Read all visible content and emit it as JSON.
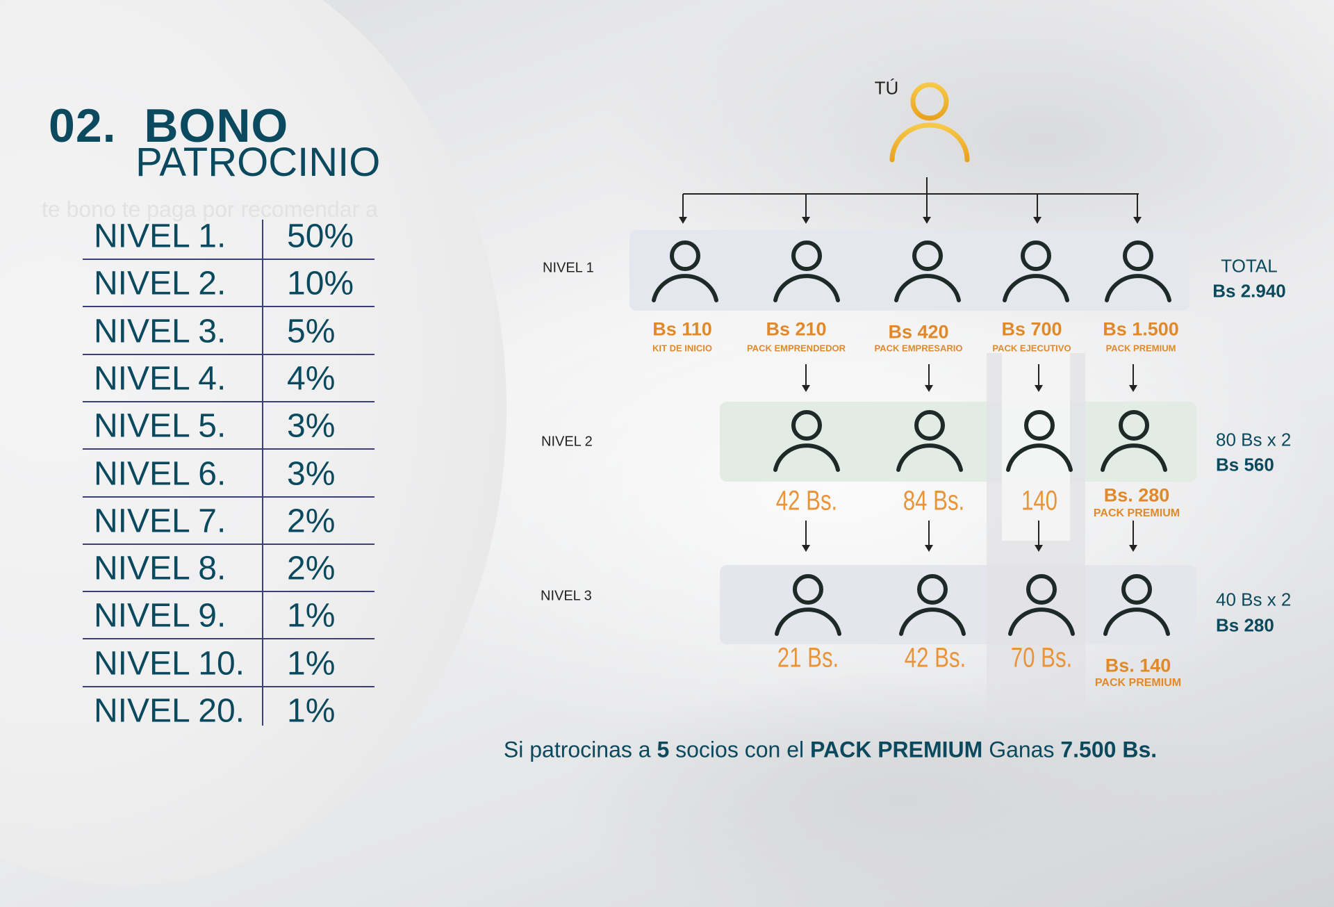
{
  "title": {
    "number": "02.",
    "word1": "BONO",
    "word2": "PATROCINIO"
  },
  "faint_text": "te bono te paga por recomendar a",
  "levels_table": [
    {
      "level": "NIVEL 1.",
      "percent": "50%"
    },
    {
      "level": "NIVEL 2.",
      "percent": "10%"
    },
    {
      "level": "NIVEL 3.",
      "percent": "5%"
    },
    {
      "level": "NIVEL 4.",
      "percent": "4%"
    },
    {
      "level": "NIVEL 5.",
      "percent": "3%"
    },
    {
      "level": "NIVEL 6.",
      "percent": "3%"
    },
    {
      "level": "NIVEL 7.",
      "percent": "2%"
    },
    {
      "level": "NIVEL 8.",
      "percent": "2%"
    },
    {
      "level": "NIVEL 9.",
      "percent": "1%"
    },
    {
      "level": "NIVEL 10.",
      "percent": "1%"
    },
    {
      "level": "NIVEL 20.",
      "percent": "1%"
    }
  ],
  "diagram": {
    "you_label": "TÚ",
    "level_labels": [
      "NIVEL 1",
      "NIVEL 2",
      "NIVEL 3"
    ],
    "level1": [
      {
        "price": "Bs 110",
        "pack": "KIT DE INICIO"
      },
      {
        "price": "Bs 210",
        "pack": "PACK EMPRENDEDOR"
      },
      {
        "price": "Bs 420",
        "pack": "PACK EMPRESARIO"
      },
      {
        "price": "Bs 700",
        "pack": "PACK EJECUTIVO"
      },
      {
        "price": "Bs 1.500",
        "pack": "PACK PREMIUM"
      }
    ],
    "level2": [
      "42 Bs.",
      "84 Bs.",
      "140"
    ],
    "level2_premium": {
      "price": "Bs. 280",
      "pack": "PACK PREMIUM"
    },
    "level3": [
      "21 Bs.",
      "42 Bs.",
      "70 Bs."
    ],
    "level3_premium": {
      "price": "Bs. 140",
      "pack": "PACK PREMIUM"
    },
    "totals": {
      "level1_label": "TOTAL",
      "level1_value": "Bs 2.940",
      "level2_calc": "80 Bs x 2",
      "level2_value": "Bs 560",
      "level3_calc": "40 Bs x 2",
      "level3_value": "Bs 280"
    }
  },
  "footer": {
    "p1": "Si patrocinas a ",
    "n": "5",
    "p2": " socios con el ",
    "pack": "PACK PREMIUM",
    "p3": " Ganas ",
    "amount": "7.500 Bs."
  },
  "colors": {
    "teal": "#0b4a5e",
    "orange": "#e0892a",
    "gold": "#f0b429",
    "line": "#3a3f78"
  },
  "icons": [
    "person-icon",
    "arrow-down-icon"
  ]
}
